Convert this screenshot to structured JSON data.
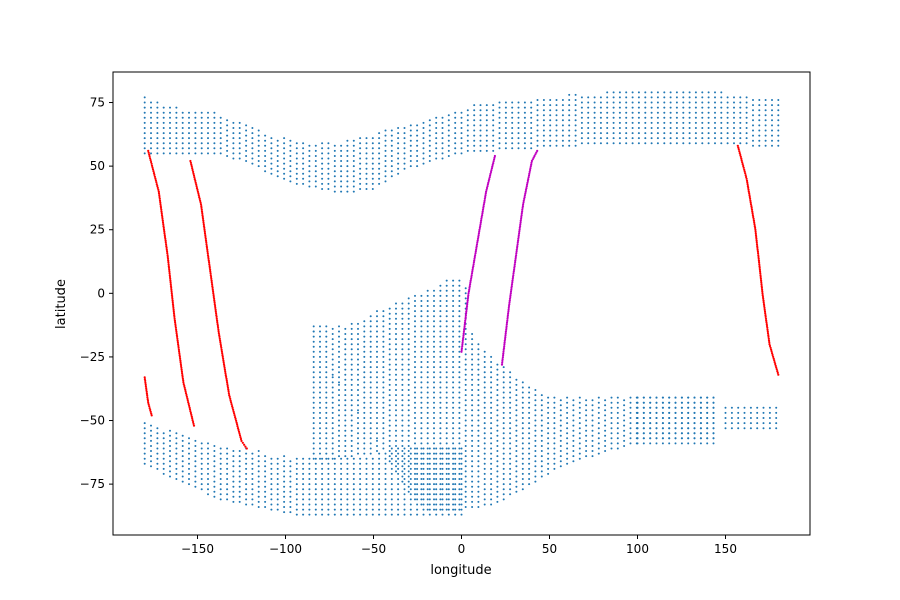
{
  "chart_data": {
    "type": "scatter",
    "xlabel": "longitude",
    "ylabel": "latitude",
    "xlim": [
      -198,
      198
    ],
    "ylim": [
      -95,
      87
    ],
    "xticks": [
      -150,
      -100,
      -50,
      0,
      50,
      100,
      150
    ],
    "yticks": [
      -75,
      -50,
      -25,
      0,
      25,
      50,
      75
    ],
    "grid": false,
    "legend": "none",
    "background_grid_style": {
      "color": "#1f77b4",
      "lon_step": 3.6,
      "lat_step": 2.0
    },
    "northern_region": {
      "lon_start": -180,
      "lon_end": 180,
      "top": [
        [
          -180,
          77
        ],
        [
          -170,
          75
        ],
        [
          -150,
          71
        ],
        [
          -140,
          71
        ],
        [
          -130,
          69
        ],
        [
          -110,
          63
        ],
        [
          -100,
          61
        ],
        [
          -90,
          59
        ],
        [
          -70,
          59
        ],
        [
          -60,
          61
        ],
        [
          -40,
          65
        ],
        [
          -20,
          69
        ],
        [
          0,
          73
        ],
        [
          10,
          75
        ],
        [
          40,
          77
        ],
        [
          80,
          79
        ],
        [
          150,
          79
        ],
        [
          180,
          77
        ]
      ],
      "bottom": [
        [
          -180,
          55
        ],
        [
          -140,
          55
        ],
        [
          -120,
          51
        ],
        [
          -110,
          47
        ],
        [
          -95,
          43
        ],
        [
          -80,
          41
        ],
        [
          -70,
          39
        ],
        [
          -50,
          41
        ],
        [
          -40,
          45
        ],
        [
          -30,
          49
        ],
        [
          -10,
          53
        ],
        [
          0,
          55
        ],
        [
          40,
          57
        ],
        [
          90,
          59
        ],
        [
          130,
          59
        ],
        [
          150,
          59
        ],
        [
          180,
          57
        ]
      ]
    },
    "southern_region": {
      "lon_start": -84,
      "lon_end": 100,
      "top": [
        [
          -84,
          -13
        ],
        [
          -65,
          -13
        ],
        [
          -50,
          -7
        ],
        [
          -40,
          -5
        ],
        [
          -30,
          -1
        ],
        [
          -15,
          3
        ],
        [
          -10,
          5
        ],
        [
          2,
          5
        ],
        [
          5,
          -13
        ],
        [
          10,
          -20
        ],
        [
          20,
          -27
        ],
        [
          30,
          -32
        ],
        [
          40,
          -37
        ],
        [
          50,
          -40
        ],
        [
          65,
          -41
        ],
        [
          100,
          -41
        ]
      ],
      "bottom": [
        [
          -84,
          -15
        ],
        [
          -80,
          -27
        ],
        [
          -70,
          -35
        ],
        [
          -60,
          -45
        ],
        [
          -50,
          -55
        ],
        [
          -45,
          -61
        ],
        [
          -40,
          -67
        ],
        [
          -30,
          -79
        ],
        [
          -20,
          -85
        ],
        [
          0,
          -85
        ],
        [
          20,
          -83
        ],
        [
          40,
          -75
        ],
        [
          60,
          -67
        ],
        [
          80,
          -63
        ],
        [
          100,
          -59
        ]
      ]
    },
    "southern_extensions": [
      {
        "lon_start": 100,
        "lon_end": 146,
        "lat_min": -57,
        "lat_max": -41
      },
      {
        "lon_start": 100,
        "lon_end": 146,
        "lat_min": -59,
        "lat_max": -41
      },
      {
        "lon_start": 150,
        "lon_end": 180,
        "lat_min": -53,
        "lat_max": -45
      }
    ],
    "antarctic_region": {
      "lon_start": -180,
      "lon_end": 0,
      "top": [
        [
          -180,
          -51
        ],
        [
          -170,
          -53
        ],
        [
          -160,
          -55
        ],
        [
          -150,
          -57
        ],
        [
          -140,
          -59
        ],
        [
          -130,
          -61
        ],
        [
          -120,
          -61
        ],
        [
          -110,
          -63
        ],
        [
          -90,
          -65
        ],
        [
          -70,
          -65
        ],
        [
          -50,
          -63
        ],
        [
          -40,
          -61
        ],
        [
          -20,
          -61
        ],
        [
          0,
          -61
        ]
      ],
      "bottom": [
        [
          -180,
          -67
        ],
        [
          -175,
          -69
        ],
        [
          -165,
          -73
        ],
        [
          -150,
          -77
        ],
        [
          -140,
          -81
        ],
        [
          -125,
          -83
        ],
        [
          -110,
          -85
        ],
        [
          -95,
          -87
        ],
        [
          -50,
          -87
        ],
        [
          -30,
          -87
        ],
        [
          0,
          -87
        ]
      ]
    },
    "series": [
      {
        "color": "#ff0000",
        "points": [
          [
            -178,
            56
          ],
          [
            -172,
            40
          ],
          [
            -167,
            15
          ],
          [
            -163,
            -10
          ],
          [
            -158,
            -35
          ],
          [
            -152,
            -52
          ]
        ]
      },
      {
        "color": "#ff0000",
        "points": [
          [
            -154,
            52
          ],
          [
            -148,
            35
          ],
          [
            -143,
            10
          ],
          [
            -138,
            -15
          ],
          [
            -132,
            -40
          ],
          [
            -125,
            -58
          ],
          [
            -122,
            -61
          ]
        ]
      },
      {
        "color": "#ff0000",
        "points": [
          [
            -180,
            -33
          ],
          [
            -178,
            -43
          ],
          [
            -176,
            -48
          ]
        ]
      },
      {
        "color": "#ff0000",
        "points": [
          [
            157,
            58
          ],
          [
            162,
            45
          ],
          [
            167,
            25
          ],
          [
            171,
            0
          ],
          [
            175,
            -20
          ],
          [
            180,
            -32
          ]
        ]
      },
      {
        "color": "#c000c0",
        "points": [
          [
            0,
            -23
          ],
          [
            4,
            0
          ],
          [
            9,
            20
          ],
          [
            14,
            40
          ],
          [
            19,
            54
          ]
        ]
      },
      {
        "color": "#c000c0",
        "points": [
          [
            23,
            -28
          ],
          [
            27,
            -5
          ],
          [
            31,
            15
          ],
          [
            35,
            35
          ],
          [
            40,
            52
          ],
          [
            43,
            56
          ]
        ]
      }
    ]
  }
}
